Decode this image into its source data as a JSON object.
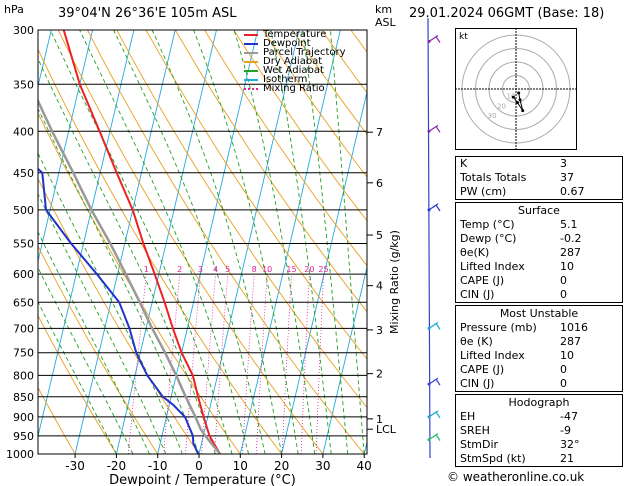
{
  "header": {
    "location": "39°04'N  26°36'E  105m  ASL",
    "datetime": "29.01.2024  06GMT  (Base: 18)",
    "hpa_label": "hPa",
    "km_label": "km",
    "asl_label": "ASL"
  },
  "legend": [
    {
      "label": "Temperature",
      "color": "#ee2222"
    },
    {
      "label": "Dewpoint",
      "color": "#2233cc"
    },
    {
      "label": "Parcel Trajectory",
      "color": "#999999"
    },
    {
      "label": "Dry Adiabat",
      "color": "#e8a020"
    },
    {
      "label": "Wet Adiabat",
      "color": "#20a020"
    },
    {
      "label": "Isotherm",
      "color": "#22aadd"
    },
    {
      "label": "Mixing Ratio",
      "color": "#dd2299"
    }
  ],
  "chart_data": {
    "type": "line",
    "xlabel": "Dewpoint / Temperature (°C)",
    "ylabel": "Mixing Ratio (g/kg)",
    "x_ticks": [
      -30,
      -20,
      -10,
      0,
      10,
      20,
      30,
      40
    ],
    "pressure_levels": [
      300,
      350,
      400,
      450,
      500,
      550,
      600,
      650,
      700,
      750,
      800,
      850,
      900,
      950,
      1000
    ],
    "km_ticks": [
      {
        "label": "7",
        "p": 401
      },
      {
        "label": "6",
        "p": 463
      },
      {
        "label": "5",
        "p": 537
      },
      {
        "label": "4",
        "p": 620
      },
      {
        "label": "3",
        "p": 703
      },
      {
        "label": "2",
        "p": 796
      },
      {
        "label": "1",
        "p": 905
      },
      {
        "label": "LCL",
        "p": 932
      }
    ],
    "mixing_ratio_labels": [
      "1",
      "2",
      "3",
      "4",
      "5",
      "8",
      "10",
      "15",
      "20",
      "25"
    ],
    "mixing_ratio_values": [
      1,
      2,
      3,
      4,
      5,
      8,
      10,
      15,
      20,
      25
    ],
    "series": [
      {
        "name": "Temperature",
        "color": "#ee2222",
        "points": [
          [
            1000,
            5.1
          ],
          [
            950,
            1.5
          ],
          [
            900,
            -1
          ],
          [
            850,
            -3.5
          ],
          [
            800,
            -6
          ],
          [
            750,
            -10
          ],
          [
            700,
            -13.5
          ],
          [
            650,
            -17
          ],
          [
            600,
            -21
          ],
          [
            550,
            -25.5
          ],
          [
            500,
            -30
          ],
          [
            450,
            -36
          ],
          [
            400,
            -42.5
          ],
          [
            350,
            -50
          ],
          [
            300,
            -57
          ]
        ]
      },
      {
        "name": "Dewpoint",
        "color": "#2233cc",
        "points": [
          [
            1000,
            -0.2
          ],
          [
            970,
            -2
          ],
          [
            950,
            -2.5
          ],
          [
            900,
            -5.5
          ],
          [
            870,
            -9
          ],
          [
            850,
            -12
          ],
          [
            800,
            -17
          ],
          [
            750,
            -21
          ],
          [
            700,
            -24
          ],
          [
            650,
            -28
          ],
          [
            600,
            -35
          ],
          [
            550,
            -43
          ],
          [
            500,
            -51
          ],
          [
            450,
            -54
          ],
          [
            420,
            -62
          ],
          [
            400,
            -70
          ],
          [
            350,
            -63
          ],
          [
            300,
            -66
          ]
        ]
      },
      {
        "name": "Parcel Trajectory",
        "color": "#999999",
        "points": [
          [
            1000,
            5.1
          ],
          [
            950,
            0.5
          ],
          [
            932,
            -1
          ],
          [
            900,
            -3
          ],
          [
            850,
            -6.5
          ],
          [
            800,
            -10
          ],
          [
            750,
            -14
          ],
          [
            700,
            -18.5
          ],
          [
            650,
            -23
          ],
          [
            600,
            -28
          ],
          [
            550,
            -33.5
          ],
          [
            500,
            -40
          ],
          [
            450,
            -46.5
          ],
          [
            400,
            -54
          ],
          [
            350,
            -62
          ],
          [
            300,
            -71
          ]
        ]
      }
    ]
  },
  "indices": [
    {
      "label": "K",
      "value": "3"
    },
    {
      "label": "Totals Totals",
      "value": "37"
    },
    {
      "label": "PW (cm)",
      "value": "0.67"
    }
  ],
  "surface": {
    "title": "Surface",
    "rows": [
      {
        "label": "Temp (°C)",
        "value": "5.1"
      },
      {
        "label": "Dewp (°C)",
        "value": "-0.2"
      },
      {
        "label": "θe(K)",
        "value": "287"
      },
      {
        "label": "Lifted Index",
        "value": "10"
      },
      {
        "label": "CAPE (J)",
        "value": "0"
      },
      {
        "label": "CIN (J)",
        "value": "0"
      }
    ]
  },
  "unstable": {
    "title": "Most Unstable",
    "rows": [
      {
        "label": "Pressure (mb)",
        "value": "1016"
      },
      {
        "label": "θe (K)",
        "value": "287"
      },
      {
        "label": "Lifted Index",
        "value": "10"
      },
      {
        "label": "CAPE (J)",
        "value": "0"
      },
      {
        "label": "CIN (J)",
        "value": "0"
      }
    ]
  },
  "hodograph_table": {
    "title": "Hodograph",
    "rows": [
      {
        "label": "EH",
        "value": "-47"
      },
      {
        "label": "SREH",
        "value": "-9"
      },
      {
        "label": "StmDir",
        "value": "32°"
      },
      {
        "label": "StmSpd (kt)",
        "value": "21"
      }
    ]
  },
  "hodograph": {
    "unit_label": "kt",
    "rings_kt": [
      10,
      20,
      30,
      40
    ],
    "ring_labels": [
      "10",
      "20",
      "30"
    ],
    "trace_kt": [
      [
        2,
        -3
      ],
      [
        3,
        -8
      ],
      [
        5,
        -16
      ],
      [
        1,
        -10
      ],
      [
        -2,
        -6
      ]
    ]
  },
  "credit": "© weatheronline.co.uk"
}
